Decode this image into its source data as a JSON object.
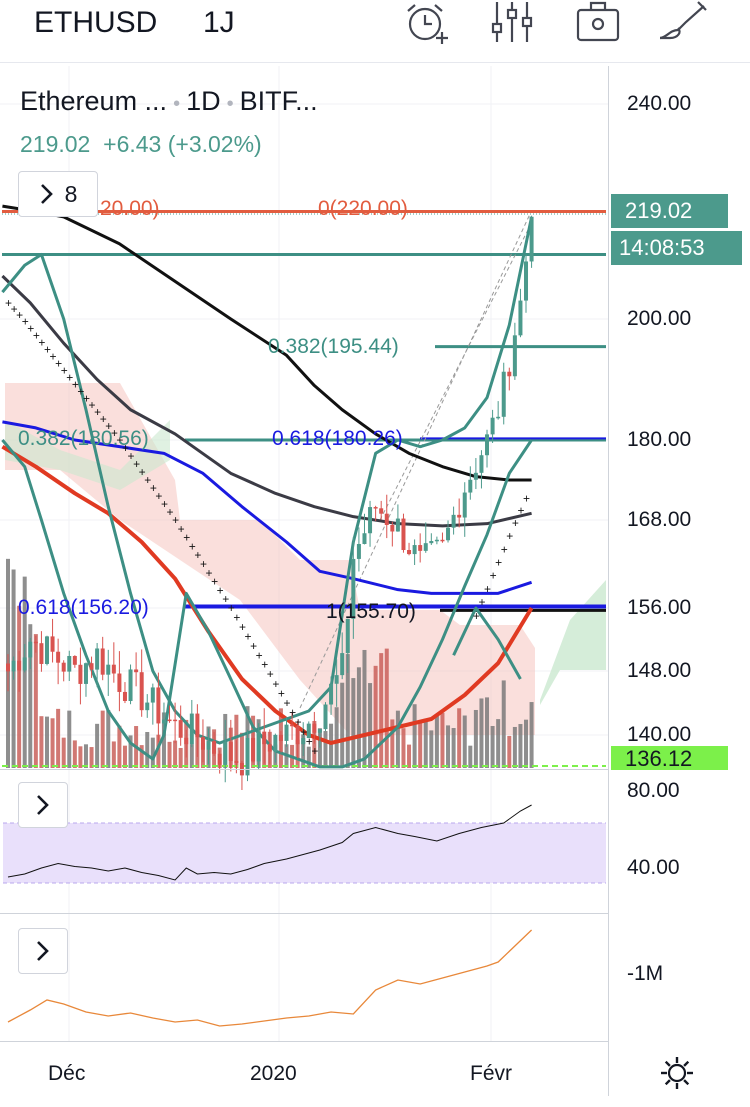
{
  "header": {
    "symbol": "ETHUSD",
    "interval": "1J"
  },
  "legend": {
    "title": "Ethereum ...",
    "interval": "1D",
    "exchange": "BITF...",
    "last": "219.02",
    "change": "+6.43",
    "change_pct": "(+3.02%)",
    "indicators_count": "8"
  },
  "price_axis": {
    "labels": [
      "240.00",
      "200.00",
      "180.00",
      "168.00",
      "156.00",
      "148.00",
      "140.00"
    ],
    "current_price_tag": "219.02",
    "countdown_tag": "14:08:53",
    "low_tag": "136.12",
    "colors": {
      "up": "#4c9a8c",
      "down": "#d9534f",
      "low_tag": "#7cf04a"
    }
  },
  "fib_labels": {
    "left_top": "20.00)",
    "top": "0(220.00)",
    "mid_right": "0.382(195.44)",
    "left_382": "0.382(180.56)",
    "right_618": "0.618(180.26)",
    "left_618": "0.618(156.20)",
    "one": "1(155.70)"
  },
  "rsi_axis": {
    "labels": [
      "80.00",
      "40.00"
    ]
  },
  "obv_axis": {
    "labels": [
      "-1M"
    ]
  },
  "time_axis": {
    "labels": [
      "Déc",
      "2020",
      "Févr"
    ]
  },
  "chart_data": {
    "type": "candlestick",
    "symbol": "ETHUSD",
    "interval": "1D",
    "exchange": "BITF...",
    "last_price": 219.02,
    "y_range": [
      133,
      246
    ],
    "y_ticks": [
      240,
      200,
      180,
      168,
      156,
      148,
      140
    ],
    "x_ticks": [
      "Déc",
      "2020",
      "Févr"
    ],
    "fibonacci": {
      "0": 220.0,
      "0.382": 195.44,
      "0.618": 180.26,
      "1": 155.7
    },
    "lower_fib": {
      "0.382": 180.56,
      "0.618": 156.2
    },
    "horizontal_levels": [
      212,
      180,
      156
    ],
    "rsi": {
      "y_ticks": [
        80,
        40
      ],
      "band": [
        30,
        70
      ]
    },
    "obv": {
      "y_ticks": [
        "-1M"
      ]
    },
    "colors": {
      "sma_black": "#111111",
      "sma_grey": "#3b3b45",
      "sma_blue": "#1a1ae0",
      "sma_red": "#e03a22",
      "bollinger": "#3d8f84",
      "fib_line": "#e25c3f",
      "cloud_red": "#f6c4c0",
      "cloud_green": "#cbe8cf",
      "rsi_band": "#e9e0fb",
      "obv_line": "#e8883a"
    }
  }
}
